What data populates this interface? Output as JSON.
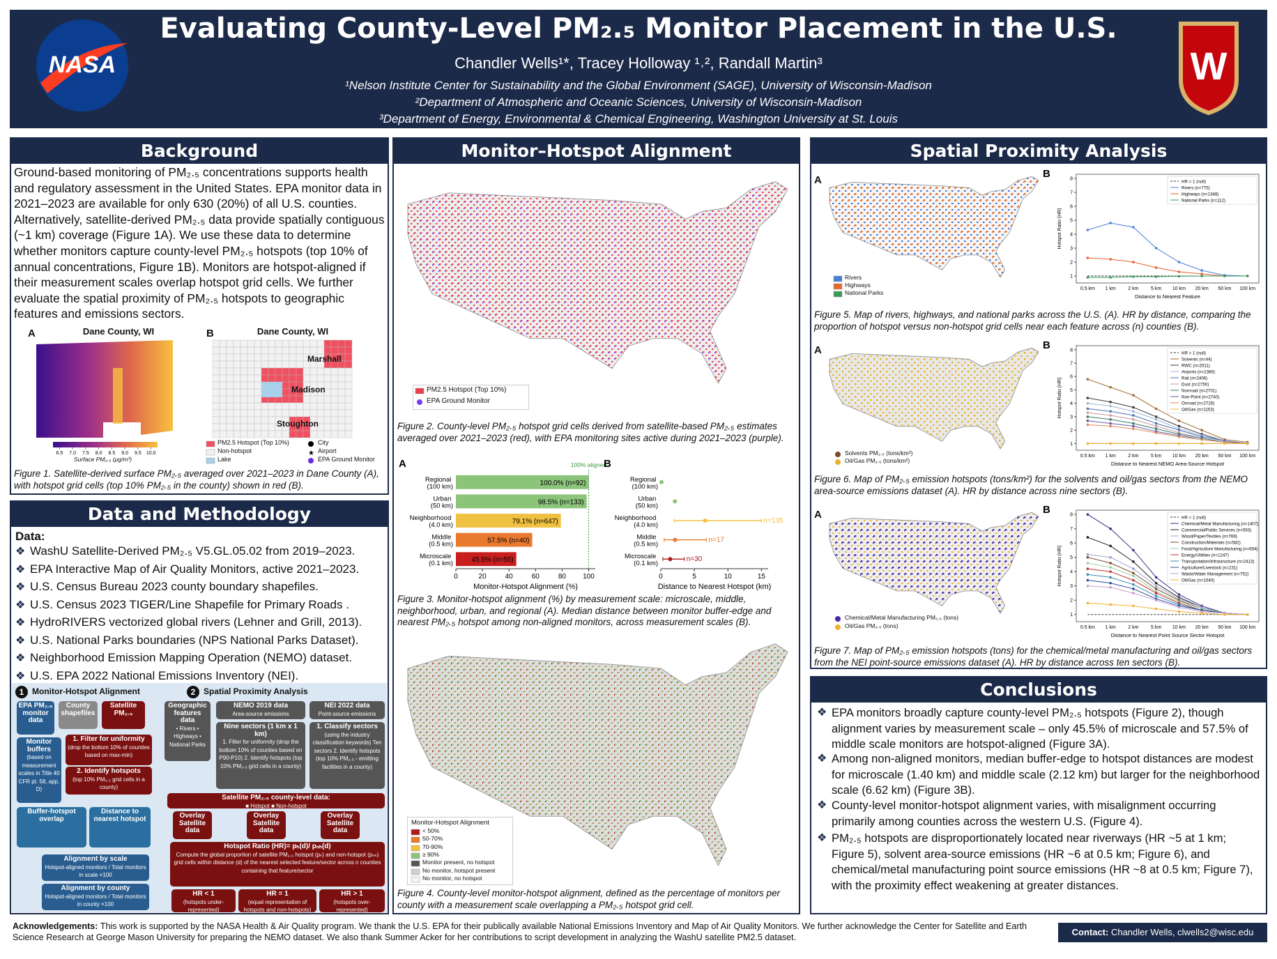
{
  "header": {
    "title": "Evaluating County-Level PM₂.₅ Monitor Placement in the U.S.",
    "authors": "Chandler Wells¹*, Tracey Holloway ¹˒², Randall Martin³",
    "affiliations": [
      "¹Nelson Institute Center for Sustainability and the Global Environment (SAGE), University of Wisconsin-Madison",
      "²Department of Atmospheric and Oceanic Sciences, University of Wisconsin-Madison",
      "³Department of Energy, Environmental & Chemical Engineering, Washington University at St. Louis"
    ],
    "left_logo": "NASA",
    "right_logo": "W"
  },
  "background": {
    "heading": "Background",
    "text": "Ground-based monitoring of PM₂.₅ concentrations supports health and regulatory assessment in the United States. EPA monitor data in 2021–2023 are available for only 630 (20%) of all U.S. counties. Alternatively, satellite-derived PM₂.₅ data provide spatially contiguous (~1 km) coverage (Figure 1A). We use these data to determine whether monitors capture county-level PM₂.₅ hotspots (top 10% of annual concentrations, Figure 1B). Monitors are hotspot-aligned if their measurement scales overlap hotspot grid cells. We further evaluate the spatial proximity of PM₂.₅ hotspots to geographic features and emissions sectors.",
    "figure1": {
      "panel_labels": [
        "A",
        "B"
      ],
      "titles": [
        "Dane County, WI",
        "Dane County, WI"
      ],
      "places": [
        "Marshall",
        "Madison",
        "Stoughton"
      ],
      "colorbar_label": "Surface PM₂.₅ (μg/m³)",
      "colorbar_lim": [
        6.25,
        10.25
      ],
      "colorbar_ticks": [
        {
          "value": 6.5,
          "label": "6.5"
        },
        {
          "value": 7,
          "label": "7.0"
        },
        {
          "value": 7.5,
          "label": "7.5"
        },
        {
          "value": 8,
          "label": "8.0"
        },
        {
          "value": 8.5,
          "label": "8.5"
        },
        {
          "value": 9,
          "label": "9.0"
        },
        {
          "value": 9.5,
          "label": "9.5"
        },
        {
          "value": 10,
          "label": "10.0"
        }
      ],
      "legend": [
        "PM2.5 Hotspot (Top 10%)",
        "Non-hotspot",
        "Lake",
        "City",
        "Airport",
        "EPA Ground Monitor"
      ],
      "caption": "Figure 1. Satellite-derived surface PM₂.₅ averaged over 2021–2023 in Dane County (A), with hotspot grid cells (top 10% PM₂.₅ in the county) shown in red (B)."
    }
  },
  "alignment": {
    "heading": "Monitor–Hotspot Alignment",
    "figure2_legend": [
      "PM2.5 Hotspot (Top 10%)",
      "EPA Ground Monitor"
    ],
    "figure2_caption": "Figure 2. County-level PM₂.₅ hotspot grid cells derived from satellite-based PM₂.₅ estimates averaged over 2021–2023 (red), with EPA monitoring sites active during 2021–2023 (purple).",
    "figure3_caption": "Figure 3. Monitor-hotspot alignment (%) by measurement scale: microscale, middle, neighborhood, urban, and regional (A). Median distance between monitor buffer-edge and nearest PM₂.₅ hotspot among non-aligned monitors, across measurement scales (B).",
    "figure4_legend_title": "Monitor-Hotspot Alignment",
    "figure4_legend": [
      "< 50%",
      "50-70%",
      "70-90%",
      "≥ 90%",
      "Monitor present, no hotspot",
      "No monitor, hotspot present",
      "No monitor, no hotspot"
    ],
    "figure4_caption": "Figure 4. County-level monitor-hotspot alignment, defined as the percentage of monitors per county with a measurement scale overlapping a PM₂.₅ hotspot grid cell."
  },
  "methods": {
    "heading": "Data and Methodology",
    "data_label": "Data:",
    "data_items": [
      "WashU Satellite-Derived PM₂.₅ V5.GL.05.02 from 2019–2023.",
      "EPA Interactive Map of Air Quality Monitors, active 2021–2023.",
      "U.S. Census Bureau 2023 county boundary shapefiles.",
      "U.S. Census 2023 TIGER/Line Shapefile for Primary Roads .",
      "HydroRIVERS vectorized global rivers (Lehner and Grill, 2013).",
      "U.S. National Parks boundaries (NPS National Parks Dataset).",
      "Neighborhood Emission Mapping Operation (NEMO) dataset.",
      "U.S. EPA 2022 National Emissions Inventory (NEI)."
    ],
    "diagram": {
      "part_numbers": [
        "1",
        "2"
      ],
      "part_titles": [
        "Monitor-Hotspot Alignment",
        "Spatial Proximity Analysis"
      ],
      "boxes": [
        {
          "title": "EPA PM₂.₅ monitor data"
        },
        {
          "title": "County shapefiles"
        },
        {
          "title": "Satellite PM₂.₅"
        },
        {
          "title": "Monitor buffers",
          "text": "(based on measurement scales in Title 40 CFR pt. 58, app. D)"
        },
        {
          "title": "1. Filter for uniformity",
          "text": "(drop the bottom 10% of counties based on max-min)"
        },
        {
          "title": "2. Identify hotspots",
          "text": "(top 10% PM₂.₅ grid cells in a county)"
        },
        {
          "title": "Buffer-hotspot overlap"
        },
        {
          "title": "Distance to nearest hotspot"
        },
        {
          "title": "Alignment by scale",
          "text": "Hotspot-aligned monitors / Total monitors in scale ×100"
        },
        {
          "title": "Alignment by county",
          "text": "Hotspot-aligned monitors / Total monitors in county ×100"
        },
        {
          "title": "Geographic features data",
          "text": "• Rivers • Highways • National Parks"
        },
        {
          "title": "NEMO 2019 data",
          "text": "Area-source emissions"
        },
        {
          "title": "NEI 2022 data",
          "text": "Point-source emissions"
        },
        {
          "title": "Nine sectors (1 km x 1 km)",
          "text": "1. Filter for uniformity (drop the bottom 10% of counties based on P90-P10) 2. Identify hotspots (top 10% PM₂.₅ grid cells in a county)"
        },
        {
          "title": "1. Classify sectors",
          "text": "(using the industry classification keywords) Ten sectors 2. Identify hotspots (top 10% PM₂.₅ - emitting facilities in a county)"
        },
        {
          "title": "Satellite PM₂.₅ county-level data:",
          "text": "■ Hotspot ■ Non-hotspot"
        },
        {
          "title": "Overlay Satellite data"
        },
        {
          "title": "Overlay Satellite data"
        },
        {
          "title": "Overlay Satellite data"
        },
        {
          "title": "Hotspot Ratio (HR)= pₕ(d)/ pₙₕ(d)",
          "text": "Compute the global proportion of satellite PM₂.₅ hotspot (pₕ) and non-hotspot (pₙₕ) grid cells within distance (d) of the nearest selected feature/sector across n counties containing that feature/sector"
        },
        {
          "title": "HR < 1",
          "text": "(hotspots under-represented)"
        },
        {
          "title": "HR = 1",
          "text": "(equal representation of hotspots and non-hotspots)"
        },
        {
          "title": "HR > 1",
          "text": "(hotspots over-represented)"
        }
      ]
    }
  },
  "spatial": {
    "heading": "Spatial Proximity Analysis",
    "panel_labels": [
      "A",
      "A",
      "A"
    ],
    "figure5_legend": [
      "Rivers",
      "Highways",
      "National Parks"
    ],
    "figure5_caption": "Figure 5. Map of rivers, highways, and national parks across the U.S. (A). HR by distance, comparing the proportion of hotspot versus non-hotspot grid cells near each feature across (n) counties (B).",
    "figure6_legend": [
      "Solvents PM₂.₅ (tons/km²)",
      "Oil/Gas PM₂.₅ (tons/km²)"
    ],
    "figure6_caption": "Figure 6. Map of PM₂.₅ emission hotspots (tons/km²) for the solvents and oil/gas sectors from the NEMO area-source emissions dataset (A). HR by distance across nine sectors (B).",
    "figure7_legend": [
      "Chemical/Metal Manufacturing PM₂.₅ (tons)",
      "Oil/Gas PM₂.₅ (tons)"
    ],
    "figure7_caption": "Figure 7. Map of PM₂.₅ emission hotspots (tons) for the chemical/metal manufacturing and oil/gas sectors from the NEI point-source emissions dataset (A). HR by distance across ten sectors (B)."
  },
  "conclusions": {
    "heading": "Conclusions",
    "items": [
      "EPA monitors broadly capture county-level PM₂.₅ hotspots (Figure 2), though alignment varies by measurement scale – only 45.5% of microscale and 57.5% of middle scale monitors are hotspot-aligned (Figure 3A).",
      "Among non-aligned monitors, median buffer-edge to hotspot distances are modest for microscale (1.40 km) and middle scale (2.12 km) but larger for the neighborhood scale (6.62 km) (Figure 3B).",
      "County-level monitor-hotspot alignment varies, with misalignment occurring primarily among counties across the western U.S. (Figure 4).",
      "PM₂.₅ hotspots are disproportionately located near riverways (HR ~5 at 1 km; Figure 5), solvent area-source emissions (HR ~6 at 0.5 km; Figure 6), and chemical/metal manufacturing point source emissions (HR ~8 at 0.5 km; Figure 7), with the proximity effect weakening at greater distances."
    ]
  },
  "footer": {
    "acknowledgements_label": "Acknowledgements:",
    "acknowledgements": "This work is supported by the NASA Health & Air Quality program. We thank the U.S. EPA for their publically available National Emissions Inventory and Map of Air Quality Monitors. We further acknowledge the Center for Satellite and Earth Science Research at George Mason University for preparing the NEMO dataset. We also thank Summer Acker for her contributions to script development in analyzing the WashU satellite PM2.5 dataset.",
    "contact_label": "Contact:",
    "contact": "Chandler Wells, clwells2@wisc.edu"
  },
  "chart_data": [
    {
      "type": "bar",
      "orientation": "horizontal",
      "panel_label": "A",
      "categories": [
        "Regional (100 km)",
        "Urban (50 km)",
        "Neighborhood (4.0 km)",
        "Middle (0.5 km)",
        "Microscale (0.1 km)"
      ],
      "values": [
        100,
        98.5,
        79.1,
        57.5,
        45.5
      ],
      "value_labels": [
        "100.0% (n=92)",
        "98.5% (n=133)",
        "79.1% (n=647)",
        "57.5% (n=40)",
        "45.5% (n=55)"
      ],
      "colors": [
        "#8cc47a",
        "#8cc47a",
        "#f0c040",
        "#e8792e",
        "#c81e1e"
      ],
      "reference_line": 100,
      "annotation": "100% aligned",
      "xlabel": "Monitor-Hotspot Alignment (%)",
      "xlim": [
        0,
        105
      ],
      "xticks": [
        0,
        20,
        40,
        60,
        80,
        100
      ]
    },
    {
      "type": "range",
      "panel_label": "B",
      "categories": [
        "Regional (100 km)",
        "Urban (50 km)",
        "Neighborhood (4.0 km)",
        "Middle (0.5 km)",
        "Microscale (0.1 km)"
      ],
      "values": [
        0.1,
        2.1,
        6.62,
        2.12,
        1.4
      ],
      "lower": [
        null,
        null,
        2.0,
        0.5,
        0.3
      ],
      "upper": [
        null,
        null,
        15.0,
        6.8,
        3.5
      ],
      "n_labels": [
        null,
        null,
        "n=135",
        "n=17",
        "n=30"
      ],
      "colors": [
        "#8cc47a",
        "#8cc47a",
        "#f0c040",
        "#e8792e",
        "#b01818"
      ],
      "xlabel": "Distance to Nearest Hotspot (km)",
      "xlim": [
        0,
        16
      ],
      "xticks": [
        0,
        5,
        10,
        15
      ]
    },
    {
      "type": "line",
      "panel_label": "B",
      "categories": [
        "0.5 km",
        "1 km",
        "2 km",
        "5 km",
        "10 km",
        "20 km",
        "50 km",
        "100 km"
      ],
      "xlabel": "Distance to Nearest Feature",
      "ylabel": "Hotspot Ratio (HR)",
      "ylim": [
        0.5,
        8.3
      ],
      "yticks": [
        1,
        2,
        3,
        4,
        5,
        6,
        7,
        8
      ],
      "series": [
        {
          "name": "HR = 1 (null)",
          "color": "#333333",
          "dashed": true,
          "values": [
            1,
            1,
            1,
            1,
            1,
            1,
            1,
            1
          ]
        },
        {
          "name": "Rivers (n=775)",
          "color": "#4a7fd8",
          "values": [
            4.3,
            4.8,
            4.5,
            3.0,
            2.0,
            1.4,
            1.05,
            1.0
          ]
        },
        {
          "name": "Highways (n=1348)",
          "color": "#e8602c",
          "values": [
            2.3,
            2.2,
            2.0,
            1.6,
            1.3,
            1.15,
            1.0,
            1.0
          ]
        },
        {
          "name": "National Parks (n=112)",
          "color": "#3a9a5a",
          "values": [
            0.9,
            0.9,
            0.95,
            0.95,
            0.98,
            1.0,
            1.0,
            1.0
          ]
        }
      ]
    },
    {
      "type": "line",
      "panel_label": "B",
      "categories": [
        "0.5 km",
        "1 km",
        "2 km",
        "5 km",
        "10 km",
        "20 km",
        "50 km",
        "100 km"
      ],
      "xlabel": "Distance to Nearest NEMO Area-Source Hotspot",
      "ylabel": "Hotspot Ratio (HR)",
      "ylim": [
        0.5,
        8.3
      ],
      "yticks": [
        1,
        2,
        3,
        4,
        5,
        6,
        7,
        8
      ],
      "series": [
        {
          "name": "HR = 1 (null)",
          "color": "#333333",
          "dashed": true,
          "values": [
            1,
            1,
            1,
            1,
            1,
            1,
            1,
            1
          ]
        },
        {
          "name": "Solvents (n=44)",
          "color": "#9c6b2e",
          "values": [
            5.8,
            5.2,
            4.6,
            3.6,
            2.7,
            2.0,
            1.3,
            1.1
          ]
        },
        {
          "name": "RWC (n=2511)",
          "color": "#3b3b3b",
          "values": [
            4.4,
            4.1,
            3.7,
            3.0,
            2.3,
            1.7,
            1.2,
            1.0
          ]
        },
        {
          "name": "Airports (n=2386)",
          "color": "#9db3d8",
          "values": [
            4.0,
            3.8,
            3.4,
            2.8,
            2.1,
            1.6,
            1.2,
            1.0
          ]
        },
        {
          "name": "Rail (n=2406)",
          "color": "#4a6fb5",
          "values": [
            3.6,
            3.4,
            3.1,
            2.5,
            2.0,
            1.5,
            1.2,
            1.0
          ]
        },
        {
          "name": "Dust (n=2750)",
          "color": "#c79a9a",
          "values": [
            3.3,
            3.1,
            2.8,
            2.3,
            1.8,
            1.4,
            1.1,
            1.0
          ]
        },
        {
          "name": "Nonroad (n=2701)",
          "color": "#3a7a6a",
          "values": [
            3.0,
            2.8,
            2.5,
            2.1,
            1.7,
            1.4,
            1.1,
            1.0
          ]
        },
        {
          "name": "Non-Point (n=2740)",
          "color": "#6a5aa0",
          "values": [
            2.7,
            2.5,
            2.3,
            1.9,
            1.6,
            1.3,
            1.1,
            1.0
          ]
        },
        {
          "name": "Onroad (n=2728)",
          "color": "#e08a5a",
          "values": [
            2.4,
            2.3,
            2.1,
            1.8,
            1.5,
            1.3,
            1.1,
            1.0
          ]
        },
        {
          "name": "Oil/Gas (n=1153)",
          "color": "#f0b030",
          "values": [
            1.0,
            1.0,
            1.0,
            1.0,
            1.0,
            1.0,
            1.0,
            1.0
          ]
        }
      ]
    },
    {
      "type": "line",
      "panel_label": "B",
      "categories": [
        "0.5 km",
        "1 km",
        "2 km",
        "5 km",
        "10 km",
        "20 km",
        "50 km",
        "100 km"
      ],
      "xlabel": "Distance to Nearest Point Source Sector Hotspot",
      "ylabel": "Hotspot Ratio (HR)",
      "ylim": [
        0.5,
        8.3
      ],
      "yticks": [
        1,
        2,
        3,
        4,
        5,
        6,
        7,
        8
      ],
      "series": [
        {
          "name": "HR = 1 (null)",
          "color": "#333333",
          "dashed": true,
          "values": [
            1,
            1,
            1,
            1,
            1,
            1,
            1,
            1
          ]
        },
        {
          "name": "Chemical/Metal Manufacturing (n=1407)",
          "color": "#3b2a8a",
          "values": [
            8.0,
            7.0,
            5.5,
            3.6,
            2.4,
            1.6,
            1.1,
            1.0
          ]
        },
        {
          "name": "Commercial/Public Services (n=593)",
          "color": "#222222",
          "values": [
            6.4,
            5.8,
            4.7,
            3.2,
            2.2,
            1.5,
            1.1,
            1.0
          ]
        },
        {
          "name": "Wood/Paper/Textiles (n=769)",
          "color": "#9aa3d0",
          "values": [
            5.2,
            5.0,
            4.2,
            3.0,
            2.1,
            1.5,
            1.1,
            1.0
          ]
        },
        {
          "name": "Construction/Materials (n=582)",
          "color": "#7a4a2a",
          "values": [
            5.0,
            4.6,
            3.9,
            2.8,
            2.0,
            1.4,
            1.1,
            1.0
          ]
        },
        {
          "name": "Food/Agriculture Manufacturing (n=654)",
          "color": "#9ad0a0",
          "values": [
            4.6,
            4.3,
            3.7,
            2.6,
            1.9,
            1.4,
            1.1,
            1.0
          ]
        },
        {
          "name": "Energy/Utilities (n=1247)",
          "color": "#c03030",
          "values": [
            4.2,
            4.0,
            3.4,
            2.5,
            1.8,
            1.3,
            1.1,
            1.0
          ]
        },
        {
          "name": "Transportation/Infrastructure (n=2413)",
          "color": "#3a8ab0",
          "values": [
            3.8,
            3.6,
            3.1,
            2.3,
            1.7,
            1.3,
            1.1,
            1.0
          ]
        },
        {
          "name": "Agriculture/Livestock (n=231)",
          "color": "#2a4a9a",
          "values": [
            3.4,
            3.2,
            2.8,
            2.1,
            1.6,
            1.3,
            1.1,
            1.0
          ]
        },
        {
          "name": "Waste/Water Management (n=752)",
          "color": "#c8a0d0",
          "values": [
            3.0,
            2.9,
            2.5,
            2.0,
            1.5,
            1.2,
            1.1,
            1.0
          ]
        },
        {
          "name": "Oil/Gas (n=1040)",
          "color": "#f0b030",
          "values": [
            1.8,
            1.7,
            1.6,
            1.4,
            1.2,
            1.1,
            1.0,
            1.0
          ]
        }
      ]
    }
  ]
}
